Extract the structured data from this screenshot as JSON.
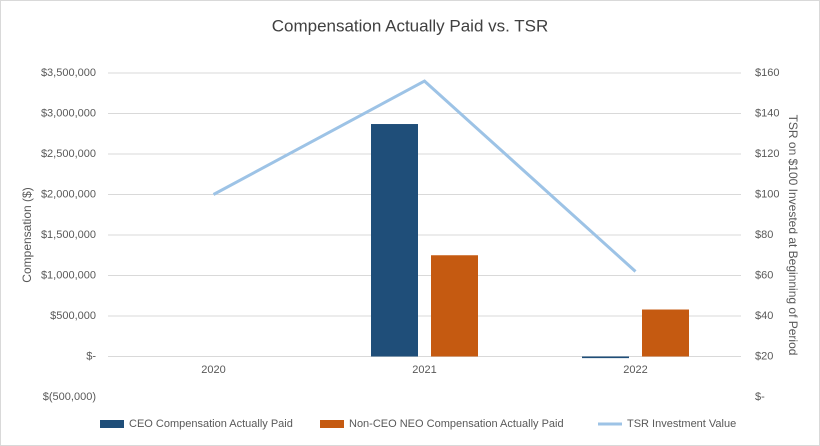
{
  "chart_data": {
    "type": "bar-line",
    "title": "Compensation Actually Paid vs. TSR",
    "ylabel": "Compensation ($)",
    "y2label": "TSR on $100 Invested at Beginning of Period",
    "categories": [
      "2020",
      "2021",
      "2022"
    ],
    "series": [
      {
        "name": "CEO Compensation Actually Paid",
        "type": "bar",
        "color": "#1f4e79",
        "values": [
          null,
          2870000,
          -20000
        ]
      },
      {
        "name": "Non-CEO NEO Compensation Actually Paid",
        "type": "bar",
        "color": "#c55a11",
        "values": [
          null,
          1250000,
          580000
        ]
      },
      {
        "name": "TSR Investment Value",
        "type": "line",
        "axis": "y2",
        "color": "#9dc3e6",
        "values": [
          100,
          156,
          62
        ]
      }
    ],
    "ylim": [
      -500000,
      3500000
    ],
    "yticks": [
      {
        "value": -500000,
        "label": "$(500,000)"
      },
      {
        "value": 0,
        "label": "$-"
      },
      {
        "value": 500000,
        "label": "$500,000"
      },
      {
        "value": 1000000,
        "label": "$1,000,000"
      },
      {
        "value": 1500000,
        "label": "$1,500,000"
      },
      {
        "value": 2000000,
        "label": "$2,000,000"
      },
      {
        "value": 2500000,
        "label": "$2,500,000"
      },
      {
        "value": 3000000,
        "label": "$3,000,000"
      },
      {
        "value": 3500000,
        "label": "$3,500,000"
      }
    ],
    "y2lim": [
      0,
      160
    ],
    "y2ticks": [
      {
        "value": 0,
        "label": "$-"
      },
      {
        "value": 20,
        "label": "$20"
      },
      {
        "value": 40,
        "label": "$40"
      },
      {
        "value": 60,
        "label": "$60"
      },
      {
        "value": 80,
        "label": "$80"
      },
      {
        "value": 100,
        "label": "$100"
      },
      {
        "value": 120,
        "label": "$120"
      },
      {
        "value": 140,
        "label": "$140"
      },
      {
        "value": 160,
        "label": "$160"
      }
    ],
    "grid": true,
    "legend": "bottom"
  }
}
